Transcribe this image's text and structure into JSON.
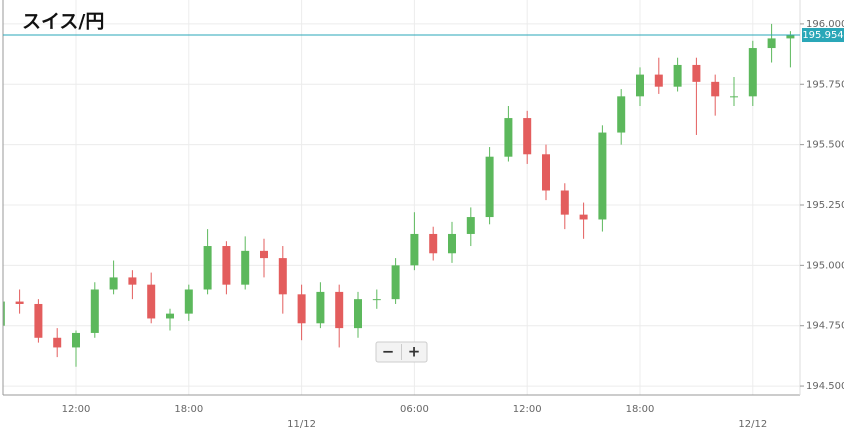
{
  "chart_data": {
    "type": "candlestick",
    "title": "スイス/円",
    "categories": [
      null,
      null,
      null,
      null,
      "12:00",
      null,
      null,
      null,
      null,
      null,
      "18:00",
      null,
      null,
      null,
      null,
      null,
      "11/12",
      null,
      null,
      null,
      null,
      null,
      "06:00",
      null,
      null,
      null,
      null,
      null,
      "12:00",
      null,
      null,
      null,
      null,
      null,
      "18:00",
      null,
      null,
      null,
      null,
      null,
      "12/12",
      null,
      null
    ],
    "open": [
      194.75,
      194.85,
      194.84,
      194.7,
      194.66,
      194.72,
      194.9,
      194.95,
      194.92,
      194.78,
      194.8,
      194.9,
      195.08,
      194.92,
      195.06,
      195.03,
      194.88,
      194.76,
      194.89,
      194.74,
      194.86,
      194.86,
      195.0,
      195.13,
      195.05,
      195.13,
      195.2,
      195.45,
      195.61,
      195.46,
      195.31,
      195.21,
      195.19,
      195.55,
      195.7,
      195.79,
      195.74,
      195.83,
      195.76,
      195.7,
      195.7,
      195.9,
      195.94
    ],
    "high": [
      194.88,
      194.9,
      194.86,
      194.74,
      194.73,
      194.93,
      195.02,
      194.98,
      194.97,
      194.82,
      194.92,
      195.15,
      195.1,
      195.12,
      195.11,
      195.08,
      194.92,
      194.93,
      194.92,
      194.89,
      194.9,
      195.03,
      195.22,
      195.16,
      195.18,
      195.24,
      195.49,
      195.66,
      195.64,
      195.5,
      195.34,
      195.26,
      195.58,
      195.73,
      195.82,
      195.86,
      195.86,
      195.86,
      195.79,
      195.78,
      195.93,
      196.0,
      195.97
    ],
    "low": [
      194.63,
      194.8,
      194.68,
      194.62,
      194.58,
      194.7,
      194.88,
      194.86,
      194.76,
      194.73,
      194.77,
      194.88,
      194.88,
      194.9,
      194.95,
      194.8,
      194.69,
      194.74,
      194.66,
      194.7,
      194.82,
      194.84,
      194.98,
      195.02,
      195.01,
      195.08,
      195.17,
      195.43,
      195.42,
      195.27,
      195.15,
      195.11,
      195.14,
      195.5,
      195.66,
      195.71,
      195.72,
      195.54,
      195.62,
      195.66,
      195.66,
      195.84,
      195.82
    ],
    "close": [
      194.85,
      194.84,
      194.7,
      194.66,
      194.72,
      194.9,
      194.95,
      194.92,
      194.78,
      194.8,
      194.9,
      195.08,
      194.92,
      195.06,
      195.03,
      194.88,
      194.76,
      194.89,
      194.74,
      194.86,
      194.86,
      195.0,
      195.13,
      195.05,
      195.13,
      195.2,
      195.45,
      195.61,
      195.46,
      195.31,
      195.21,
      195.19,
      195.55,
      195.7,
      195.79,
      195.74,
      195.83,
      195.76,
      195.7,
      195.7,
      195.9,
      195.94,
      195.954
    ],
    "up_color": "#5cb85c",
    "down_color": "#e35d5d",
    "last": 195.954,
    "last_color": "#2aa7b8",
    "ylim": [
      194.463,
      196.099
    ],
    "yticks": [
      {
        "value": 194.5,
        "label": "194.500"
      },
      {
        "value": 194.75,
        "label": "194.750"
      },
      {
        "value": 195,
        "label": "195.000"
      },
      {
        "value": 195.25,
        "label": "195.250"
      },
      {
        "value": 195.5,
        "label": "195.500"
      },
      {
        "value": 195.75,
        "label": "195.750"
      },
      {
        "value": 196,
        "label": "196.000"
      }
    ],
    "grid": true
  },
  "zoom_controls": [
    "−",
    "+"
  ]
}
